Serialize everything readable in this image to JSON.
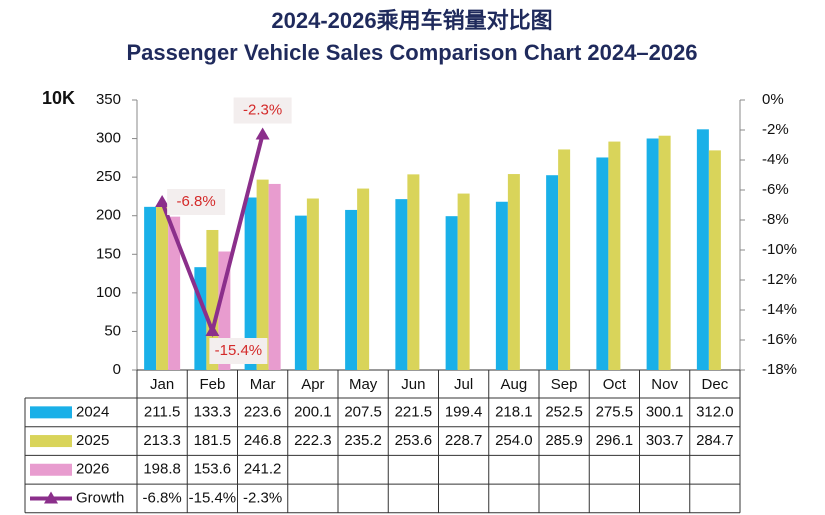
{
  "chart_data": {
    "type": "bar",
    "title": "2024-2026乘用车销量对比图",
    "subtitle": "Passenger Vehicle Sales Comparison Chart 2024–2026",
    "y_label": "10K",
    "categories": [
      "Jan",
      "Feb",
      "Mar",
      "Apr",
      "May",
      "Jun",
      "Jul",
      "Aug",
      "Sep",
      "Oct",
      "Nov",
      "Dec"
    ],
    "ylim": [
      0,
      350
    ],
    "yticks": [
      0,
      50,
      100,
      150,
      200,
      250,
      300,
      350
    ],
    "y2lim": [
      -18,
      0
    ],
    "y2ticks": [
      {
        "value": 0,
        "label": "0%"
      },
      {
        "value": -2,
        "label": "-2%"
      },
      {
        "value": -4,
        "label": "-4%"
      },
      {
        "value": -6,
        "label": "-6%"
      },
      {
        "value": -8,
        "label": "-8%"
      },
      {
        "value": -10,
        "label": "-10%"
      },
      {
        "value": -12,
        "label": "-12%"
      },
      {
        "value": -14,
        "label": "-14%"
      },
      {
        "value": -16,
        "label": "-16%"
      },
      {
        "value": -18,
        "label": "-18%"
      }
    ],
    "series": [
      {
        "name": "2024",
        "color": "#1ab0e8",
        "values": [
          211.5,
          133.3,
          223.6,
          200.1,
          207.5,
          221.5,
          199.4,
          218.1,
          252.5,
          275.5,
          300.1,
          312.0
        ],
        "value_labels": [
          "211.5",
          "133.3",
          "223.6",
          "200.1",
          "207.5",
          "221.5",
          "199.4",
          "218.1",
          "252.5",
          "275.5",
          "300.1",
          "312.0"
        ]
      },
      {
        "name": "2025",
        "color": "#d9d45a",
        "values": [
          213.3,
          181.5,
          246.8,
          222.3,
          235.2,
          253.6,
          228.7,
          254.0,
          285.9,
          296.1,
          303.7,
          284.7
        ],
        "value_labels": [
          "213.3",
          "181.5",
          "246.8",
          "222.3",
          "235.2",
          "253.6",
          "228.7",
          "254.0",
          "285.9",
          "296.1",
          "303.7",
          "284.7"
        ]
      },
      {
        "name": "2026",
        "color": "#e89ccf",
        "values": [
          198.8,
          153.6,
          241.2,
          null,
          null,
          null,
          null,
          null,
          null,
          null,
          null,
          null
        ],
        "value_labels": [
          "198.8",
          "153.6",
          "241.2",
          null,
          null,
          null,
          null,
          null,
          null,
          null,
          null,
          null
        ]
      },
      {
        "name": "Growth",
        "color": "#8b2f8b",
        "type": "line",
        "axis": "y2",
        "values": [
          -6.8,
          -15.4,
          -2.3,
          null,
          null,
          null,
          null,
          null,
          null,
          null,
          null,
          null
        ],
        "value_labels": [
          "-6.8%",
          "-15.4%",
          "-2.3%",
          null,
          null,
          null,
          null,
          null,
          null,
          null,
          null,
          null
        ]
      }
    ]
  }
}
